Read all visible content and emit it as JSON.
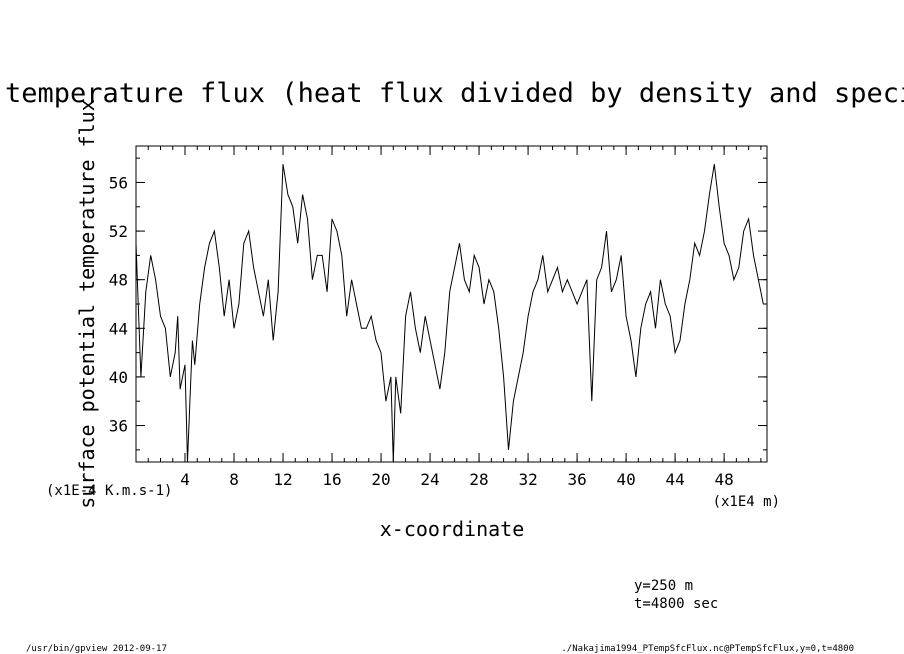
{
  "chart_data": {
    "type": "line",
    "title": "potential temperature flux (heat flux divided by density and specific heat)",
    "xlabel": "x-coordinate",
    "ylabel": "surface potential temperature flux",
    "x_unit_label": "(x1E4 m)",
    "y_unit_label": "(x1E-4 K.m.s-1)",
    "xlim": [
      0,
      51.5
    ],
    "ylim": [
      33,
      59
    ],
    "x_ticks": [
      4,
      8,
      12,
      16,
      20,
      24,
      28,
      32,
      36,
      40,
      44,
      48
    ],
    "y_ticks": [
      36,
      40,
      44,
      48,
      52,
      56
    ],
    "x_tick_labels": [
      "4",
      "8",
      "12",
      "16",
      "20",
      "24",
      "28",
      "32",
      "36",
      "40",
      "44",
      "48"
    ],
    "y_tick_labels": [
      "36",
      "40",
      "44",
      "48",
      "52",
      "56"
    ],
    "grid": false,
    "series": [
      {
        "x": [
          0,
          0.4,
          0.8,
          1.2,
          1.6,
          2,
          2.4,
          2.8,
          3.2,
          3.4,
          3.6,
          4,
          4.2,
          4.4,
          4.6,
          4.8,
          5.2,
          5.6,
          6,
          6.4,
          6.8,
          7.2,
          7.6,
          8,
          8.4,
          8.8,
          9.2,
          9.6,
          10,
          10.4,
          10.8,
          11.2,
          11.6,
          12,
          12.4,
          12.8,
          13.2,
          13.6,
          14,
          14.4,
          14.8,
          15.2,
          15.6,
          16,
          16.4,
          16.8,
          17.2,
          17.6,
          18,
          18.4,
          18.8,
          19.2,
          19.6,
          20,
          20.4,
          20.8,
          21,
          21.2,
          21.6,
          22,
          22.4,
          22.8,
          23.2,
          23.6,
          24,
          24.4,
          24.8,
          25.2,
          25.6,
          26,
          26.4,
          26.8,
          27.2,
          27.6,
          28,
          28.4,
          28.8,
          29.2,
          29.6,
          30,
          30.4,
          30.8,
          31.2,
          31.6,
          32,
          32.4,
          32.8,
          33.2,
          33.6,
          34,
          34.4,
          34.8,
          35.2,
          35.6,
          36,
          36.4,
          36.8,
          37.2,
          37.6,
          38,
          38.4,
          38.8,
          39.2,
          39.6,
          40,
          40.4,
          40.8,
          41.2,
          41.6,
          42,
          42.4,
          42.8,
          43.2,
          43.6,
          44,
          44.4,
          44.8,
          45.2,
          45.6,
          46,
          46.4,
          46.8,
          47.2,
          47.6,
          48,
          48.4,
          48.8,
          49.2,
          49.6,
          50,
          50.4,
          50.8,
          51.2
        ],
        "y": [
          51,
          40,
          47,
          50,
          48,
          45,
          44,
          40,
          42,
          45,
          39,
          41,
          33,
          38,
          43,
          41,
          46,
          49,
          51,
          52,
          49,
          45,
          48,
          44,
          46,
          51,
          52,
          49,
          47,
          45,
          48,
          43,
          47,
          57.5,
          55,
          54,
          51,
          55,
          53,
          48,
          50,
          50,
          47,
          53,
          52,
          50,
          45,
          48,
          46,
          44,
          44,
          45,
          43,
          42,
          38,
          40,
          33,
          40,
          37,
          45,
          47,
          44,
          42,
          45,
          43,
          41,
          39,
          42,
          47,
          49,
          51,
          48,
          47,
          50,
          49,
          46,
          48,
          47,
          44,
          40,
          34,
          38,
          40,
          42,
          45,
          47,
          48,
          50,
          47,
          48,
          49,
          47,
          48,
          47,
          46,
          47,
          48,
          38,
          48,
          49,
          52,
          47,
          48,
          50,
          45,
          43,
          40,
          44,
          46,
          47,
          44,
          48,
          46,
          45,
          42,
          43,
          46,
          48,
          51,
          50,
          52,
          55,
          57.5,
          54,
          51,
          50,
          48,
          49,
          52,
          53,
          50,
          48,
          46
        ]
      }
    ],
    "annotations": [
      "y=250  m",
      "t=4800 sec"
    ],
    "footer_left": "/usr/bin/gpview  2012-09-17",
    "footer_right": "./Nakajima1994_PTempSfcFlux.nc@PTempSfcFlux,y=0,t=4800"
  }
}
